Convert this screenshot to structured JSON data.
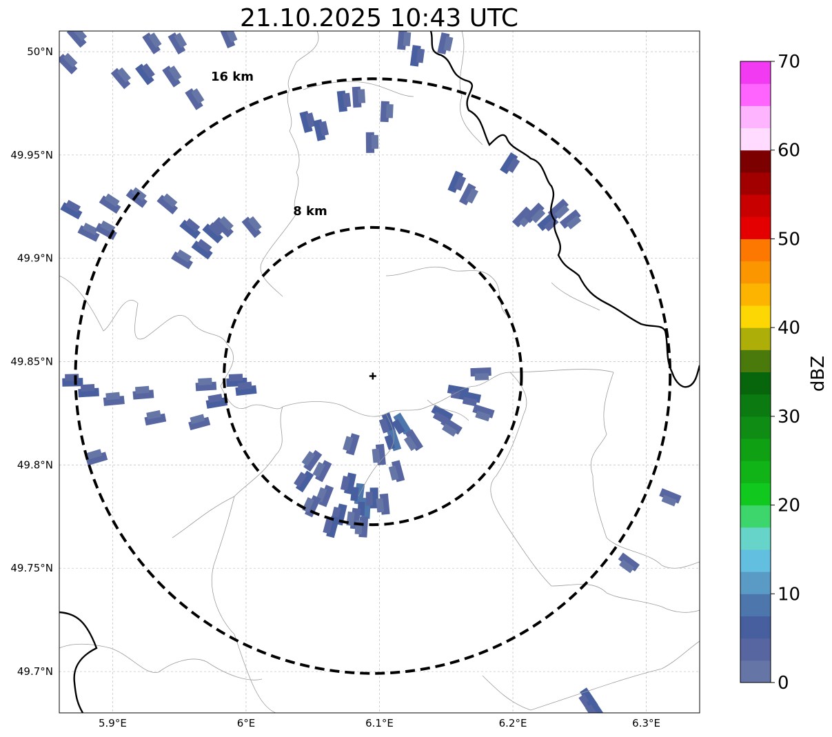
{
  "title": "21.10.2025 10:43 UTC",
  "map": {
    "lon_range": [
      5.86,
      6.34
    ],
    "lat_range": [
      49.68,
      50.01
    ],
    "lon_ticks": [
      {
        "value": 5.9,
        "label": "5.9°E"
      },
      {
        "value": 6.0,
        "label": "6°E"
      },
      {
        "value": 6.1,
        "label": "6.1°E"
      },
      {
        "value": 6.2,
        "label": "6.2°E"
      },
      {
        "value": 6.3,
        "label": "6.3°E"
      }
    ],
    "lat_ticks": [
      {
        "value": 50.0,
        "label": "50°N"
      },
      {
        "value": 49.95,
        "label": "49.95°N"
      },
      {
        "value": 49.9,
        "label": "49.9°N"
      },
      {
        "value": 49.85,
        "label": "49.85°N"
      },
      {
        "value": 49.8,
        "label": "49.8°N"
      },
      {
        "value": 49.75,
        "label": "49.75°N"
      },
      {
        "value": 49.7,
        "label": "49.7°N"
      }
    ],
    "gridlines": true,
    "radar_site": {
      "lon": 6.095,
      "lat": 49.843
    },
    "range_rings": [
      {
        "label": "8 km",
        "radius_km": 8
      },
      {
        "label": "16 km",
        "radius_km": 16
      }
    ]
  },
  "colorbar": {
    "label": "dBZ",
    "ticks": [
      "0",
      "10",
      "20",
      "30",
      "40",
      "50",
      "60",
      "70"
    ],
    "colors": [
      "#6475a6",
      "#5766a0",
      "#475e9f",
      "#4c76ac",
      "#5a9bc6",
      "#63bfdf",
      "#66d4c8",
      "#3dd66c",
      "#10c81e",
      "#10b416",
      "#10a014",
      "#0f8c13",
      "#0b7a10",
      "#07650b",
      "#4b7a0c",
      "#adae08",
      "#fcd703",
      "#fcb400",
      "#fc9600",
      "#fc7800",
      "#e40000",
      "#c80000",
      "#a20000",
      "#7d0000",
      "#ffdcff",
      "#ffb4ff",
      "#ff64ff",
      "#f23af2"
    ]
  },
  "echoes": [
    {
      "lon": 5.873,
      "lat": 50.007,
      "dbz": 3
    },
    {
      "lon": 5.929,
      "lat": 50.004,
      "dbz": 3
    },
    {
      "lon": 5.948,
      "lat": 50.004,
      "dbz": 4
    },
    {
      "lon": 5.986,
      "lat": 50.007,
      "dbz": 3
    },
    {
      "lon": 5.906,
      "lat": 49.987,
      "dbz": 4
    },
    {
      "lon": 5.924,
      "lat": 49.989,
      "dbz": 5
    },
    {
      "lon": 5.944,
      "lat": 49.988,
      "dbz": 4
    },
    {
      "lon": 5.961,
      "lat": 49.977,
      "dbz": 3
    },
    {
      "lon": 5.866,
      "lat": 49.994,
      "dbz": 3
    },
    {
      "lon": 6.045,
      "lat": 49.966,
      "dbz": 5
    },
    {
      "lon": 6.055,
      "lat": 49.962,
      "dbz": 5
    },
    {
      "lon": 6.072,
      "lat": 49.976,
      "dbz": 5
    },
    {
      "lon": 6.083,
      "lat": 49.978,
      "dbz": 4
    },
    {
      "lon": 6.104,
      "lat": 49.971,
      "dbz": 4
    },
    {
      "lon": 6.093,
      "lat": 49.956,
      "dbz": 4
    },
    {
      "lon": 6.117,
      "lat": 50.006,
      "dbz": 4
    },
    {
      "lon": 6.127,
      "lat": 49.998,
      "dbz": 5
    },
    {
      "lon": 6.148,
      "lat": 50.004,
      "dbz": 3
    },
    {
      "lon": 5.869,
      "lat": 49.923,
      "dbz": 5
    },
    {
      "lon": 5.882,
      "lat": 49.912,
      "dbz": 4
    },
    {
      "lon": 5.898,
      "lat": 49.926,
      "dbz": 4
    },
    {
      "lon": 5.918,
      "lat": 49.929,
      "dbz": 3
    },
    {
      "lon": 5.941,
      "lat": 49.926,
      "dbz": 4
    },
    {
      "lon": 5.958,
      "lat": 49.914,
      "dbz": 5
    },
    {
      "lon": 5.975,
      "lat": 49.912,
      "dbz": 5
    },
    {
      "lon": 5.967,
      "lat": 49.904,
      "dbz": 6
    },
    {
      "lon": 5.983,
      "lat": 49.915,
      "dbz": 4
    },
    {
      "lon": 6.004,
      "lat": 49.915,
      "dbz": 3
    },
    {
      "lon": 5.952,
      "lat": 49.899,
      "dbz": 3
    },
    {
      "lon": 5.895,
      "lat": 49.913,
      "dbz": 4
    },
    {
      "lon": 5.87,
      "lat": 49.84,
      "dbz": 5
    },
    {
      "lon": 5.882,
      "lat": 49.835,
      "dbz": 6
    },
    {
      "lon": 5.901,
      "lat": 49.831,
      "dbz": 4
    },
    {
      "lon": 5.923,
      "lat": 49.834,
      "dbz": 3
    },
    {
      "lon": 5.932,
      "lat": 49.822,
      "dbz": 3
    },
    {
      "lon": 5.888,
      "lat": 49.803,
      "dbz": 3
    },
    {
      "lon": 5.97,
      "lat": 49.838,
      "dbz": 4
    },
    {
      "lon": 5.978,
      "lat": 49.83,
      "dbz": 5
    },
    {
      "lon": 5.993,
      "lat": 49.84,
      "dbz": 5
    },
    {
      "lon": 6.0,
      "lat": 49.836,
      "dbz": 5
    },
    {
      "lon": 5.965,
      "lat": 49.82,
      "dbz": 4
    },
    {
      "lon": 6.157,
      "lat": 49.937,
      "dbz": 5
    },
    {
      "lon": 6.166,
      "lat": 49.931,
      "dbz": 4
    },
    {
      "lon": 6.207,
      "lat": 49.92,
      "dbz": 4
    },
    {
      "lon": 6.216,
      "lat": 49.922,
      "dbz": 3
    },
    {
      "lon": 6.226,
      "lat": 49.918,
      "dbz": 6
    },
    {
      "lon": 6.234,
      "lat": 49.924,
      "dbz": 3
    },
    {
      "lon": 6.243,
      "lat": 49.919,
      "dbz": 4
    },
    {
      "lon": 6.197,
      "lat": 49.946,
      "dbz": 5
    },
    {
      "lon": 6.159,
      "lat": 49.836,
      "dbz": 5
    },
    {
      "lon": 6.168,
      "lat": 49.833,
      "dbz": 6
    },
    {
      "lon": 6.178,
      "lat": 49.826,
      "dbz": 4
    },
    {
      "lon": 6.147,
      "lat": 49.825,
      "dbz": 7
    },
    {
      "lon": 6.154,
      "lat": 49.819,
      "dbz": 4
    },
    {
      "lon": 6.176,
      "lat": 49.845,
      "dbz": 4
    },
    {
      "lon": 6.107,
      "lat": 49.82,
      "dbz": 6
    },
    {
      "lon": 6.117,
      "lat": 49.82,
      "dbz": 8
    },
    {
      "lon": 6.126,
      "lat": 49.812,
      "dbz": 4
    },
    {
      "lon": 6.111,
      "lat": 49.812,
      "dbz": 9
    },
    {
      "lon": 6.101,
      "lat": 49.805,
      "dbz": 4
    },
    {
      "lon": 6.08,
      "lat": 49.81,
      "dbz": 4
    },
    {
      "lon": 6.114,
      "lat": 49.797,
      "dbz": 4
    },
    {
      "lon": 6.05,
      "lat": 49.802,
      "dbz": 3
    },
    {
      "lon": 6.058,
      "lat": 49.797,
      "dbz": 4
    },
    {
      "lon": 6.044,
      "lat": 49.792,
      "dbz": 6
    },
    {
      "lon": 6.06,
      "lat": 49.785,
      "dbz": 3
    },
    {
      "lon": 6.078,
      "lat": 49.791,
      "dbz": 5
    },
    {
      "lon": 6.085,
      "lat": 49.786,
      "dbz": 8
    },
    {
      "lon": 6.09,
      "lat": 49.779,
      "dbz": 9
    },
    {
      "lon": 6.096,
      "lat": 49.784,
      "dbz": 5
    },
    {
      "lon": 6.071,
      "lat": 49.776,
      "dbz": 6
    },
    {
      "lon": 6.082,
      "lat": 49.774,
      "dbz": 4
    },
    {
      "lon": 6.104,
      "lat": 49.781,
      "dbz": 4
    },
    {
      "lon": 6.065,
      "lat": 49.77,
      "dbz": 5
    },
    {
      "lon": 6.088,
      "lat": 49.77,
      "dbz": 4
    },
    {
      "lon": 6.05,
      "lat": 49.78,
      "dbz": 4
    },
    {
      "lon": 6.287,
      "lat": 49.753,
      "dbz": 4
    },
    {
      "lon": 6.318,
      "lat": 49.785,
      "dbz": 3
    },
    {
      "lon": 6.257,
      "lat": 49.687,
      "dbz": 5
    },
    {
      "lon": 6.262,
      "lat": 49.682,
      "dbz": 7
    }
  ]
}
